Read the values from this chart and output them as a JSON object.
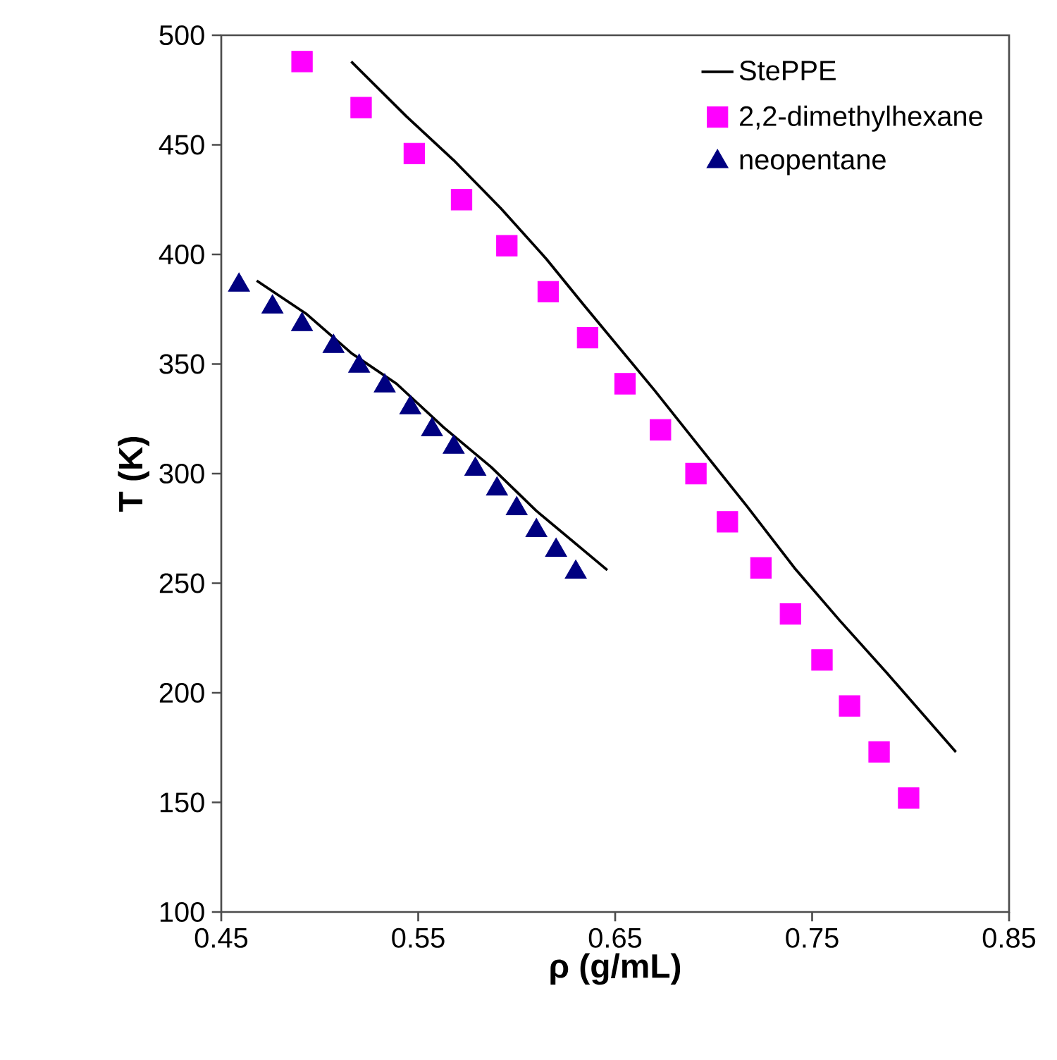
{
  "chart_data": {
    "type": "scatter",
    "xlabel": "ρ (g/mL)",
    "ylabel": "T (K)",
    "xlim": [
      0.45,
      0.85
    ],
    "ylim": [
      100,
      500
    ],
    "xticks": [
      0.45,
      0.55,
      0.65,
      0.75,
      0.85
    ],
    "yticks": [
      100,
      150,
      200,
      250,
      300,
      350,
      400,
      450,
      500
    ],
    "grid": false,
    "legend": "top right",
    "series": [
      {
        "name": "StePPE",
        "type": "line",
        "color": "#000000",
        "marker": "none",
        "line_style": "solid",
        "x": [
          0.516,
          0.544,
          0.568,
          0.592,
          0.615,
          0.634,
          0.658,
          0.67,
          0.693,
          0.717,
          0.741,
          0.764,
          0.788,
          0.823
        ],
        "values": [
          488,
          463,
          443,
          421,
          398,
          377,
          351,
          338,
          312,
          285,
          257,
          233,
          209,
          173
        ]
      },
      {
        "name": "2,2-dimethylhexane",
        "color": "#ff00ff",
        "marker": "square",
        "x": [
          0.491,
          0.521,
          0.548,
          0.572,
          0.595,
          0.616,
          0.636,
          0.655,
          0.673,
          0.691,
          0.707,
          0.724,
          0.739,
          0.755,
          0.769,
          0.784,
          0.799
        ],
        "values": [
          488,
          467,
          446,
          425,
          404,
          383,
          362,
          341,
          320,
          300,
          278,
          257,
          236,
          215,
          194,
          173,
          152
        ]
      },
      {
        "name": "neopentane",
        "color": "#000080",
        "marker": "triangle",
        "x": [
          0.459,
          0.476,
          0.491,
          0.507,
          0.52,
          0.533,
          0.546,
          0.557,
          0.568,
          0.579,
          0.59,
          0.6,
          0.61,
          0.62,
          0.63
        ],
        "values": [
          386,
          376,
          368,
          358,
          349,
          340,
          330,
          320,
          312,
          302,
          293,
          284,
          274,
          265,
          255
        ]
      },
      {
        "type": "line",
        "color": "#000000",
        "marker": "none",
        "line_style": "solid",
        "x": [
          0.468,
          0.493,
          0.516,
          0.539,
          0.563,
          0.587,
          0.61,
          0.646
        ],
        "values": [
          388,
          373,
          355,
          341,
          321,
          303,
          283,
          256
        ]
      }
    ]
  }
}
